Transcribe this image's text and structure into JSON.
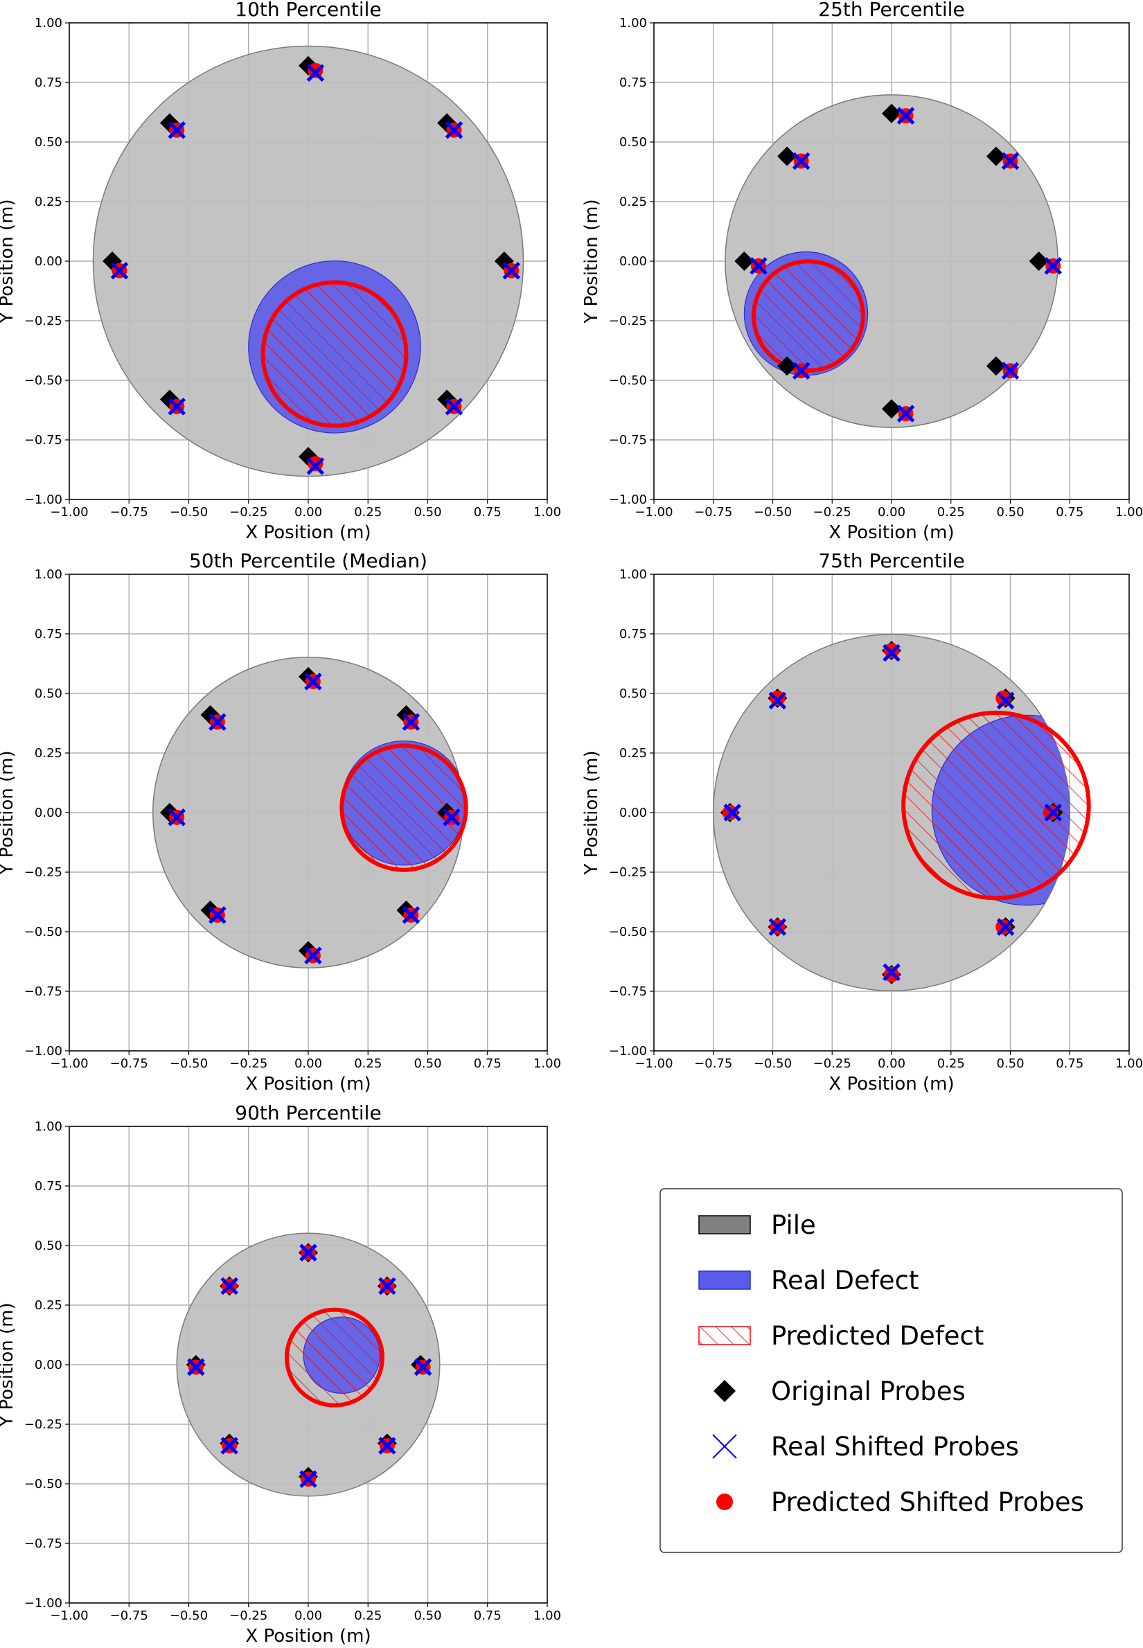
{
  "chart_data": [
    {
      "type": "scatter",
      "title": "10th Percentile",
      "xlabel": "X Position (m)",
      "ylabel": "Y Position (m)",
      "xlim": [
        -1.0,
        1.0
      ],
      "ylim": [
        -1.0,
        1.0
      ],
      "grid": true,
      "pile": {
        "cx": 0.0,
        "cy": 0.0,
        "r": 0.9
      },
      "real_defect": {
        "cx": 0.11,
        "cy": -0.36,
        "r": 0.36
      },
      "predicted_defect": {
        "cx": 0.11,
        "cy": -0.39,
        "r": 0.3
      },
      "original_probes": [
        [
          0.0,
          0.82
        ],
        [
          0.58,
          0.58
        ],
        [
          0.82,
          0.0
        ],
        [
          0.58,
          -0.58
        ],
        [
          0.0,
          -0.82
        ],
        [
          -0.58,
          -0.58
        ],
        [
          -0.82,
          0.0
        ],
        [
          -0.58,
          0.58
        ]
      ],
      "real_shifted_probes": [
        [
          0.03,
          0.79
        ],
        [
          0.61,
          0.55
        ],
        [
          0.85,
          -0.04
        ],
        [
          0.61,
          -0.61
        ],
        [
          0.03,
          -0.86
        ],
        [
          -0.55,
          -0.61
        ],
        [
          -0.79,
          -0.04
        ],
        [
          -0.55,
          0.55
        ]
      ],
      "predicted_shifted_probes": [
        [
          0.03,
          0.8
        ],
        [
          0.61,
          0.55
        ],
        [
          0.85,
          -0.04
        ],
        [
          0.61,
          -0.61
        ],
        [
          0.03,
          -0.85
        ],
        [
          -0.55,
          -0.61
        ],
        [
          -0.79,
          -0.04
        ],
        [
          -0.55,
          0.55
        ]
      ]
    },
    {
      "type": "scatter",
      "title": "25th Percentile",
      "xlabel": "X Position (m)",
      "ylabel": "Y Position (m)",
      "xlim": [
        -1.0,
        1.0
      ],
      "ylim": [
        -1.0,
        1.0
      ],
      "grid": true,
      "pile": {
        "cx": 0.0,
        "cy": 0.0,
        "r": 0.7
      },
      "real_defect": {
        "cx": -0.36,
        "cy": -0.22,
        "r": 0.26
      },
      "predicted_defect": {
        "cx": -0.35,
        "cy": -0.23,
        "r": 0.23
      },
      "original_probes": [
        [
          0.0,
          0.62
        ],
        [
          0.44,
          0.44
        ],
        [
          0.62,
          0.0
        ],
        [
          0.44,
          -0.44
        ],
        [
          0.0,
          -0.62
        ],
        [
          -0.44,
          -0.44
        ],
        [
          -0.62,
          0.0
        ],
        [
          -0.44,
          0.44
        ]
      ],
      "real_shifted_probes": [
        [
          0.06,
          0.61
        ],
        [
          0.5,
          0.42
        ],
        [
          0.68,
          -0.02
        ],
        [
          0.5,
          -0.46
        ],
        [
          0.06,
          -0.64
        ],
        [
          -0.38,
          -0.46
        ],
        [
          -0.56,
          -0.02
        ],
        [
          -0.38,
          0.42
        ]
      ],
      "predicted_shifted_probes": [
        [
          0.06,
          0.61
        ],
        [
          0.5,
          0.42
        ],
        [
          0.68,
          -0.02
        ],
        [
          0.5,
          -0.46
        ],
        [
          0.06,
          -0.64
        ],
        [
          -0.38,
          -0.46
        ],
        [
          -0.56,
          -0.02
        ],
        [
          -0.38,
          0.42
        ]
      ]
    },
    {
      "type": "scatter",
      "title": "50th Percentile (Median)",
      "xlabel": "X Position (m)",
      "ylabel": "Y Position (m)",
      "xlim": [
        -1.0,
        1.0
      ],
      "ylim": [
        -1.0,
        1.0
      ],
      "grid": true,
      "pile": {
        "cx": 0.0,
        "cy": 0.0,
        "r": 0.65
      },
      "real_defect": {
        "cx": 0.4,
        "cy": 0.04,
        "r": 0.26
      },
      "predicted_defect": {
        "cx": 0.4,
        "cy": 0.02,
        "r": 0.26
      },
      "original_probes": [
        [
          0.0,
          0.57
        ],
        [
          0.41,
          0.41
        ],
        [
          0.58,
          0.0
        ],
        [
          0.41,
          -0.41
        ],
        [
          0.0,
          -0.58
        ],
        [
          -0.41,
          -0.41
        ],
        [
          -0.58,
          0.0
        ],
        [
          -0.41,
          0.41
        ]
      ],
      "real_shifted_probes": [
        [
          0.02,
          0.55
        ],
        [
          0.43,
          0.38
        ],
        [
          0.6,
          -0.02
        ],
        [
          0.43,
          -0.43
        ],
        [
          0.02,
          -0.6
        ],
        [
          -0.38,
          -0.43
        ],
        [
          -0.55,
          -0.02
        ],
        [
          -0.38,
          0.38
        ]
      ],
      "predicted_shifted_probes": [
        [
          0.02,
          0.55
        ],
        [
          0.43,
          0.38
        ],
        [
          0.6,
          -0.02
        ],
        [
          0.43,
          -0.43
        ],
        [
          0.02,
          -0.6
        ],
        [
          -0.38,
          -0.43
        ],
        [
          -0.55,
          -0.02
        ],
        [
          -0.38,
          0.38
        ]
      ]
    },
    {
      "type": "scatter",
      "title": "75th Percentile",
      "xlabel": "X Position (m)",
      "ylabel": "Y Position (m)",
      "xlim": [
        -1.0,
        1.0
      ],
      "ylim": [
        -1.0,
        1.0
      ],
      "grid": true,
      "pile": {
        "cx": 0.0,
        "cy": 0.0,
        "r": 0.75
      },
      "real_defect": {
        "cx": 0.57,
        "cy": 0.01,
        "r": 0.4
      },
      "predicted_defect": {
        "cx": 0.44,
        "cy": 0.03,
        "r": 0.39
      },
      "original_probes": [
        [
          0.0,
          0.68
        ],
        [
          0.48,
          0.48
        ],
        [
          0.68,
          0.0
        ],
        [
          0.48,
          -0.48
        ],
        [
          0.0,
          -0.68
        ],
        [
          -0.48,
          -0.48
        ],
        [
          -0.68,
          0.0
        ],
        [
          -0.48,
          0.48
        ]
      ],
      "real_shifted_probes": [
        [
          0.0,
          0.67
        ],
        [
          0.48,
          0.47
        ],
        [
          0.68,
          0.0
        ],
        [
          0.48,
          -0.48
        ],
        [
          0.0,
          -0.67
        ],
        [
          -0.48,
          -0.48
        ],
        [
          -0.67,
          0.0
        ],
        [
          -0.48,
          0.47
        ]
      ],
      "predicted_shifted_probes": [
        [
          0.0,
          0.68
        ],
        [
          0.47,
          0.48
        ],
        [
          0.67,
          0.0
        ],
        [
          0.47,
          -0.48
        ],
        [
          0.0,
          -0.68
        ],
        [
          -0.48,
          -0.48
        ],
        [
          -0.68,
          0.0
        ],
        [
          -0.48,
          0.48
        ]
      ]
    },
    {
      "type": "scatter",
      "title": "90th Percentile",
      "xlabel": "X Position (m)",
      "ylabel": "Y Position (m)",
      "xlim": [
        -1.0,
        1.0
      ],
      "ylim": [
        -1.0,
        1.0
      ],
      "grid": true,
      "pile": {
        "cx": 0.0,
        "cy": 0.0,
        "r": 0.55
      },
      "real_defect": {
        "cx": 0.14,
        "cy": 0.04,
        "r": 0.16
      },
      "predicted_defect": {
        "cx": 0.11,
        "cy": 0.03,
        "r": 0.2
      },
      "original_probes": [
        [
          0.0,
          0.47
        ],
        [
          0.33,
          0.33
        ],
        [
          0.47,
          0.0
        ],
        [
          0.33,
          -0.33
        ],
        [
          0.0,
          -0.47
        ],
        [
          -0.33,
          -0.33
        ],
        [
          -0.47,
          0.0
        ],
        [
          -0.33,
          0.33
        ]
      ],
      "real_shifted_probes": [
        [
          0.0,
          0.47
        ],
        [
          0.33,
          0.33
        ],
        [
          0.48,
          -0.01
        ],
        [
          0.33,
          -0.34
        ],
        [
          0.0,
          -0.48
        ],
        [
          -0.33,
          -0.34
        ],
        [
          -0.47,
          -0.01
        ],
        [
          -0.33,
          0.33
        ]
      ],
      "predicted_shifted_probes": [
        [
          0.0,
          0.47
        ],
        [
          0.33,
          0.33
        ],
        [
          0.48,
          -0.01
        ],
        [
          0.33,
          -0.34
        ],
        [
          0.0,
          -0.48
        ],
        [
          -0.33,
          -0.34
        ],
        [
          -0.47,
          -0.01
        ],
        [
          -0.33,
          0.33
        ]
      ]
    }
  ],
  "legend": {
    "placement": "bottom-right",
    "entries": [
      {
        "label": "Pile",
        "marker": "pile-patch"
      },
      {
        "label": "Real Defect",
        "marker": "real-defect-patch"
      },
      {
        "label": "Predicted Defect",
        "marker": "predicted-defect-patch"
      },
      {
        "label": "Original Probes",
        "marker": "diamond"
      },
      {
        "label": "Real Shifted Probes",
        "marker": "x"
      },
      {
        "label": "Predicted Shifted Probes",
        "marker": "dot"
      }
    ]
  },
  "colors": {
    "pile_fill": "#bebebe",
    "pile_edge": "#7a7a7a",
    "real_defect_fill": "#5b5bea",
    "real_defect_edge": "#2e2ecc",
    "predicted_edge": "#ff0000",
    "original_probe": "#000000",
    "real_shifted_probe": "#0000ff",
    "predicted_shifted_probe": "#ff0000",
    "grid": "#b0b0b0"
  }
}
